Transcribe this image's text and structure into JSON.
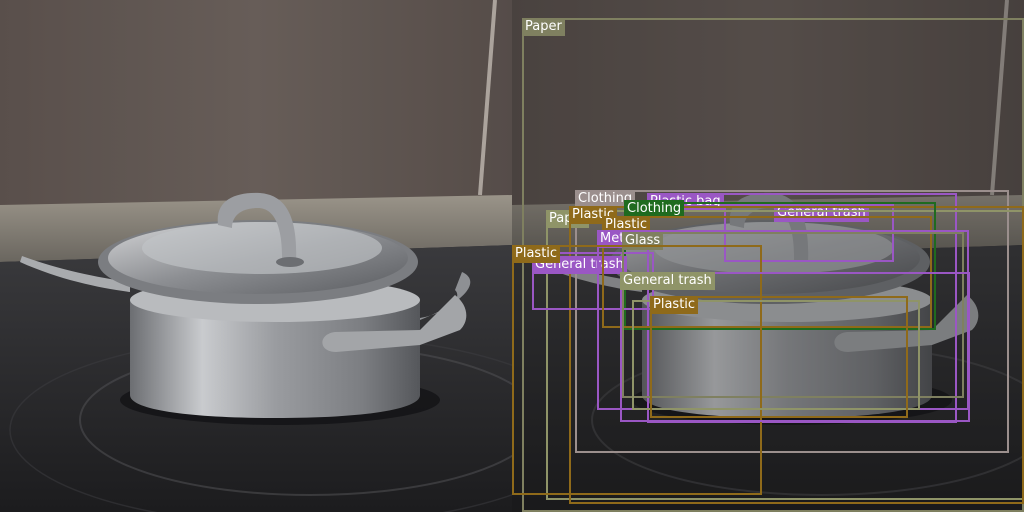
{
  "image": {
    "left_panel": "original-photo",
    "right_panel": "photo-with-detections"
  },
  "detections": [
    {
      "label": "Paper",
      "color": "#7f8060"
    },
    {
      "label": "Clothing",
      "color": "#9b8f8d"
    },
    {
      "label": "Plastic bag",
      "color": "#9a57c4"
    },
    {
      "label": "General trash",
      "color": "#9a57c4"
    },
    {
      "label": "Paper",
      "color": "#8f9468"
    },
    {
      "label": "Plastic",
      "color": "#8f6a1a"
    },
    {
      "label": "Clothing",
      "color": "#1f6b1f"
    },
    {
      "label": "General trash",
      "color": "#9a57c4"
    },
    {
      "label": "Plastic",
      "color": "#8f6a1a"
    },
    {
      "label": "Metal",
      "color": "#9a57c4"
    },
    {
      "label": "Glass",
      "color": "#7f8060"
    },
    {
      "label": "Plastic",
      "color": "#8f6a1a"
    },
    {
      "label": "General trash",
      "color": "#9a57c4"
    },
    {
      "label": "Paper",
      "color": "#8f9468"
    },
    {
      "label": "Plastic",
      "color": "#8f6a1a"
    }
  ]
}
